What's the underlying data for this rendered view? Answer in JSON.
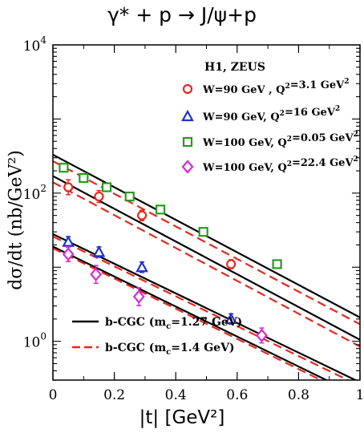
{
  "chart_data": {
    "type": "scatter",
    "title": "γ* + p → J/ψ+p",
    "xlabel": "|t| [GeV²]",
    "ylabel": "dσ/dt (nb/GeV²)",
    "xlim": [
      0,
      1
    ],
    "ylim": [
      0.3,
      10000
    ],
    "yscale": "log",
    "x_ticks": [
      "0",
      "0.2",
      "0.4",
      "0.6",
      "0.8",
      "1"
    ],
    "y_ticks": [
      {
        "base": "10",
        "exp": "0",
        "value": 1
      },
      {
        "base": "10",
        "exp": "2",
        "value": 100
      },
      {
        "base": "10",
        "exp": "4",
        "value": 10000
      }
    ],
    "legend_title": "H1, ZEUS",
    "legend_position": "top-right",
    "series": [
      {
        "name": "W=90 GeV , Q²=3.1 GeV²",
        "marker": "circle",
        "color": "#e8281d",
        "x": [
          0.05,
          0.15,
          0.29,
          0.58
        ],
        "y": [
          120,
          90,
          50,
          11
        ],
        "err": [
          0.1,
          0.08,
          0.07,
          0.06
        ]
      },
      {
        "name": "W=90 GeV, Q²=16 GeV²",
        "marker": "triangle",
        "color": "#1f2fd8",
        "x": [
          0.05,
          0.15,
          0.29,
          0.58
        ],
        "y": [
          22,
          16,
          10,
          2.0
        ],
        "err": [
          0.07,
          0.07,
          0.07,
          0.07
        ]
      },
      {
        "name": "W=100 GeV, Q²=0.05 GeV²",
        "marker": "square",
        "color": "#2a9a1e",
        "x": [
          0.035,
          0.1,
          0.175,
          0.25,
          0.35,
          0.49,
          0.73
        ],
        "y": [
          220,
          160,
          120,
          90,
          60,
          30,
          11
        ],
        "err": [
          0.05,
          0.05,
          0.05,
          0.05,
          0.05,
          0.05,
          0.05
        ]
      },
      {
        "name": "W=100 GeV, Q²=22.4 GeV²",
        "marker": "diamond",
        "color": "#d72ad7",
        "x": [
          0.05,
          0.14,
          0.28,
          0.68
        ],
        "y": [
          15,
          8,
          4.0,
          1.2
        ],
        "err": [
          0.1,
          0.12,
          0.12,
          0.1
        ]
      }
    ],
    "lines": [
      {
        "name": "b-CGC (mc=1.27 GeV)",
        "style": "solid",
        "color": "#000000",
        "segments": [
          [
            0,
            330,
            1,
            2.1
          ],
          [
            0,
            170,
            1,
            1.05
          ],
          [
            0,
            28,
            1,
            0.28
          ],
          [
            0,
            19,
            1,
            0.18
          ]
        ]
      },
      {
        "name": "b-CGC (mc=1.4 GeV)",
        "style": "dashed",
        "color": "#e8281d",
        "segments": [
          [
            0,
            270,
            1,
            1.7
          ],
          [
            0,
            140,
            1,
            0.85
          ],
          [
            0,
            26,
            1,
            0.25
          ],
          [
            0,
            18,
            1,
            0.165
          ]
        ]
      }
    ],
    "line_legend": [
      {
        "label": "b-CGC (m",
        "sub": "c",
        "rest": "=1.27 GeV)",
        "style": "solid",
        "color": "#000000"
      },
      {
        "label": "b-CGC (m",
        "sub": "c",
        "rest": "=1.4 GeV)",
        "style": "dashed",
        "color": "#e8281d"
      }
    ],
    "grid": false
  }
}
